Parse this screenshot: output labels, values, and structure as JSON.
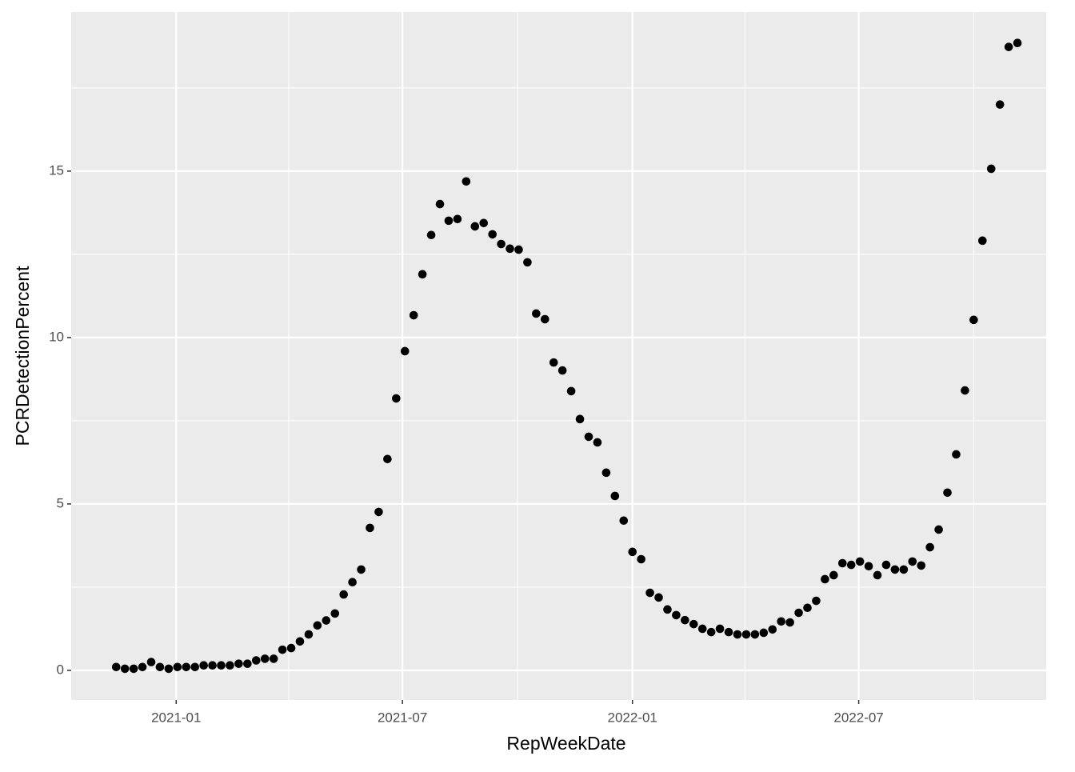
{
  "chart_data": {
    "type": "scatter",
    "x_label": "RepWeekDate",
    "y_label": "PCRDetectionPercent",
    "x": [
      "2020-11-14",
      "2020-11-21",
      "2020-11-28",
      "2020-12-05",
      "2020-12-12",
      "2020-12-19",
      "2020-12-26",
      "2021-01-02",
      "2021-01-09",
      "2021-01-16",
      "2021-01-23",
      "2021-01-30",
      "2021-02-06",
      "2021-02-13",
      "2021-02-20",
      "2021-02-27",
      "2021-03-06",
      "2021-03-13",
      "2021-03-20",
      "2021-03-27",
      "2021-04-03",
      "2021-04-10",
      "2021-04-17",
      "2021-04-24",
      "2021-05-01",
      "2021-05-08",
      "2021-05-15",
      "2021-05-22",
      "2021-05-29",
      "2021-06-05",
      "2021-06-12",
      "2021-06-19",
      "2021-06-26",
      "2021-07-03",
      "2021-07-10",
      "2021-07-17",
      "2021-07-24",
      "2021-07-31",
      "2021-08-07",
      "2021-08-14",
      "2021-08-21",
      "2021-08-28",
      "2021-09-04",
      "2021-09-11",
      "2021-09-18",
      "2021-09-25",
      "2021-10-02",
      "2021-10-09",
      "2021-10-16",
      "2021-10-23",
      "2021-10-30",
      "2021-11-06",
      "2021-11-13",
      "2021-11-20",
      "2021-11-27",
      "2021-12-04",
      "2021-12-11",
      "2021-12-18",
      "2021-12-25",
      "2022-01-01",
      "2022-01-08",
      "2022-01-15",
      "2022-01-22",
      "2022-01-29",
      "2022-02-05",
      "2022-02-12",
      "2022-02-19",
      "2022-02-26",
      "2022-03-05",
      "2022-03-12",
      "2022-03-19",
      "2022-03-26",
      "2022-04-02",
      "2022-04-09",
      "2022-04-16",
      "2022-04-23",
      "2022-04-30",
      "2022-05-07",
      "2022-05-14",
      "2022-05-21",
      "2022-05-28",
      "2022-06-04",
      "2022-06-11",
      "2022-06-18",
      "2022-06-25",
      "2022-07-02",
      "2022-07-09",
      "2022-07-16",
      "2022-07-23",
      "2022-07-30",
      "2022-08-06",
      "2022-08-13",
      "2022-08-20",
      "2022-08-27",
      "2022-09-03",
      "2022-09-10",
      "2022-09-17",
      "2022-09-24",
      "2022-10-01",
      "2022-10-08",
      "2022-10-15",
      "2022-10-22",
      "2022-10-29",
      "2022-11-05"
    ],
    "values": [
      0.1,
      0.05,
      0.05,
      0.1,
      0.25,
      0.1,
      0.05,
      0.1,
      0.1,
      0.1,
      0.15,
      0.15,
      0.15,
      0.15,
      0.2,
      0.2,
      0.3,
      0.35,
      0.35,
      0.62,
      0.67,
      0.87,
      1.08,
      1.35,
      1.5,
      1.71,
      2.28,
      2.65,
      3.03,
      4.28,
      4.76,
      6.35,
      8.17,
      9.59,
      10.67,
      11.9,
      13.08,
      14.01,
      13.51,
      13.56,
      14.69,
      13.34,
      13.44,
      13.1,
      12.81,
      12.67,
      12.64,
      12.26,
      10.72,
      10.55,
      9.25,
      9.01,
      8.39,
      7.55,
      7.02,
      6.85,
      5.94,
      5.24,
      4.5,
      3.56,
      3.34,
      2.33,
      2.19,
      1.83,
      1.66,
      1.51,
      1.39,
      1.25,
      1.15,
      1.25,
      1.15,
      1.08,
      1.08,
      1.08,
      1.13,
      1.23,
      1.47,
      1.44,
      1.73,
      1.88,
      2.09,
      2.74,
      2.86,
      3.22,
      3.17,
      3.27,
      3.13,
      2.86,
      3.17,
      3.03,
      3.03,
      3.27,
      3.15,
      3.7,
      4.23,
      5.34,
      6.49,
      8.41,
      10.53,
      12.91,
      15.07,
      17.0,
      18.73,
      18.85
    ],
    "color": "#000000",
    "xlim": [
      "2020-10-09",
      "2022-11-28"
    ],
    "xticks": [
      {
        "value": "2021-01-01",
        "label": "2021-01"
      },
      {
        "value": "2021-07-01",
        "label": "2021-07"
      },
      {
        "value": "2022-01-01",
        "label": "2022-01"
      },
      {
        "value": "2022-07-01",
        "label": "2022-07"
      }
    ],
    "x_minor_breaks": [
      "2021-04-01",
      "2021-10-01",
      "2022-04-01",
      "2022-10-01"
    ],
    "ylim": [
      -0.89,
      19.78
    ],
    "yticks": [
      0,
      5,
      10,
      15
    ],
    "y_minor_breaks": [
      2.5,
      7.5,
      12.5,
      17.5
    ],
    "grid": true
  }
}
